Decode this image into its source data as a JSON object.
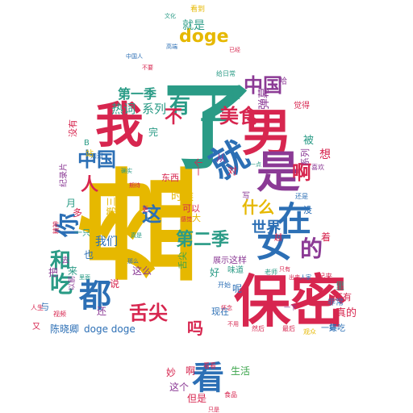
{
  "wordcloud": {
    "palette": {
      "gold": "#e6b800",
      "red": "#d7264f",
      "blue": "#2c6fb5",
      "teal": "#2a9b86",
      "purple": "#8b3a95",
      "green": "#3aa44a"
    },
    "words": [
      {
        "text": "盘",
        "color": "gold"
      },
      {
        "text": "了",
        "color": "teal"
      },
      {
        "text": "保密",
        "color": "red"
      },
      {
        "text": "男",
        "color": "red"
      },
      {
        "text": "我",
        "color": "red"
      },
      {
        "text": "是",
        "color": "purple"
      },
      {
        "text": "就",
        "color": "blue"
      },
      {
        "text": "在",
        "color": "blue"
      },
      {
        "text": "女",
        "color": "blue"
      },
      {
        "text": "看",
        "color": "blue"
      },
      {
        "text": "都",
        "color": "blue"
      },
      {
        "text": "上",
        "color": "teal"
      },
      {
        "text": "的",
        "color": "purple"
      },
      {
        "text": "你",
        "color": "blue"
      },
      {
        "text": "吃",
        "color": "teal"
      },
      {
        "text": "和",
        "color": "teal"
      },
      {
        "text": "有",
        "color": "teal"
      },
      {
        "text": "中国",
        "color": "blue"
      },
      {
        "text": "中国",
        "color": "purple"
      },
      {
        "text": "美食",
        "color": "red"
      },
      {
        "text": "doge",
        "color": "gold"
      },
      {
        "text": "舌尖",
        "color": "red"
      },
      {
        "text": "第二季",
        "color": "teal"
      },
      {
        "text": "第一季",
        "color": "teal"
      },
      {
        "text": "什么",
        "color": "gold"
      },
      {
        "text": "世界",
        "color": "blue"
      },
      {
        "text": "啊",
        "color": "red"
      },
      {
        "text": "这",
        "color": "blue"
      },
      {
        "text": "吗",
        "color": "red"
      },
      {
        "text": "不",
        "color": "red"
      },
      {
        "text": "人",
        "color": "red"
      },
      {
        "text": "热词",
        "color": "teal"
      },
      {
        "text": "系列",
        "color": "teal"
      },
      {
        "text": "弹幕",
        "color": "purple"
      },
      {
        "text": "我们",
        "color": "blue"
      },
      {
        "text": "时候",
        "color": "gold"
      },
      {
        "text": "就是",
        "color": "teal"
      },
      {
        "text": "被",
        "color": "teal"
      },
      {
        "text": "想",
        "color": "red"
      },
      {
        "text": "真的",
        "color": "red"
      },
      {
        "text": "好吃",
        "color": "blue"
      },
      {
        "text": "陈晓卿",
        "color": "blue"
      },
      {
        "text": "doge doge",
        "color": "blue"
      },
      {
        "text": "生活",
        "color": "green"
      },
      {
        "text": "这个",
        "color": "purple"
      },
      {
        "text": "但是",
        "color": "red"
      },
      {
        "text": "妙",
        "color": "red"
      },
      {
        "text": "啊",
        "color": "red"
      },
      {
        "text": "看到",
        "color": "gold"
      },
      {
        "text": "还",
        "color": "purple"
      },
      {
        "text": "来",
        "color": "teal"
      },
      {
        "text": "说",
        "color": "red"
      },
      {
        "text": "这么",
        "color": "purple"
      },
      {
        "text": "舌尖",
        "color": "green"
      },
      {
        "text": "也",
        "color": "blue"
      },
      {
        "text": "第三季",
        "color": "gold"
      },
      {
        "text": "可以",
        "color": "red"
      },
      {
        "text": "大",
        "color": "gold"
      },
      {
        "text": "好",
        "color": "teal"
      },
      {
        "text": "呢",
        "color": "blue"
      },
      {
        "text": "现在",
        "color": "blue"
      },
      {
        "text": "着",
        "color": "red"
      },
      {
        "text": "里",
        "color": "teal"
      },
      {
        "text": "还有",
        "color": "red"
      },
      {
        "text": "非常",
        "color": "blue"
      },
      {
        "text": "一集",
        "color": "blue"
      },
      {
        "text": "纪录片",
        "color": "purple"
      },
      {
        "text": "没有",
        "color": "red"
      },
      {
        "text": "很",
        "color": "teal"
      },
      {
        "text": "系列",
        "color": "purple"
      },
      {
        "text": "完",
        "color": "teal"
      },
      {
        "text": "月",
        "color": "teal"
      },
      {
        "text": "多",
        "color": "red"
      },
      {
        "text": "一只",
        "color": "teal"
      },
      {
        "text": "把",
        "color": "purple"
      },
      {
        "text": "与",
        "color": "blue"
      },
      {
        "text": "以前",
        "color": "purple"
      },
      {
        "text": "老师",
        "color": "teal"
      },
      {
        "text": "开始",
        "color": "blue"
      },
      {
        "text": "展示",
        "color": "purple"
      },
      {
        "text": "这样",
        "color": "purple"
      },
      {
        "text": "味道",
        "color": "teal"
      },
      {
        "text": "起来",
        "color": "red"
      },
      {
        "text": "东西",
        "color": "red"
      },
      {
        "text": "一个",
        "color": "red"
      },
      {
        "text": "从",
        "color": "purple"
      },
      {
        "text": "对",
        "color": "red"
      },
      {
        "text": "给日常",
        "color": "teal"
      },
      {
        "text": "文化",
        "color": "teal"
      },
      {
        "text": "高端",
        "color": "blue"
      },
      {
        "text": "只是",
        "color": "red"
      },
      {
        "text": "食品",
        "color": "red"
      },
      {
        "text": "然后",
        "color": "red"
      },
      {
        "text": "最后",
        "color": "red"
      },
      {
        "text": "观众",
        "color": "gold"
      },
      {
        "text": "人生",
        "color": "red"
      },
      {
        "text": "视频",
        "color": "red"
      },
      {
        "text": "知道",
        "color": "blue"
      },
      {
        "text": "喜欢",
        "color": "purple"
      },
      {
        "text": "越",
        "color": "red"
      },
      {
        "text": "去",
        "color": "purple"
      },
      {
        "text": "又",
        "color": "red"
      },
      {
        "text": "B",
        "color": "teal"
      },
      {
        "text": "站",
        "color": "gold"
      },
      {
        "text": "已经",
        "color": "red"
      },
      {
        "text": "看看",
        "color": "red"
      },
      {
        "text": "一下",
        "color": "purple"
      },
      {
        "text": "感觉",
        "color": "red"
      },
      {
        "text": "真是",
        "color": "teal"
      },
      {
        "text": "那么",
        "color": "blue"
      },
      {
        "text": "中国人",
        "color": "blue"
      },
      {
        "text": "不要",
        "color": "red"
      },
      {
        "text": "一点",
        "color": "teal"
      },
      {
        "text": "出来",
        "color": "red"
      },
      {
        "text": "人家",
        "color": "blue"
      },
      {
        "text": "没",
        "color": "blue"
      },
      {
        "text": "写",
        "color": "purple"
      },
      {
        "text": "还是",
        "color": "blue"
      },
      {
        "text": "更",
        "color": "red"
      },
      {
        "text": "觉得",
        "color": "red"
      },
      {
        "text": "哈",
        "color": "purple"
      },
      {
        "text": "精神",
        "color": "red"
      },
      {
        "text": "里面",
        "color": "teal"
      },
      {
        "text": "只有",
        "color": "red"
      },
      {
        "text": "怀念",
        "color": "red"
      },
      {
        "text": "不用",
        "color": "red"
      },
      {
        "text": "确实",
        "color": "teal"
      },
      {
        "text": "期待",
        "color": "red"
      }
    ]
  }
}
